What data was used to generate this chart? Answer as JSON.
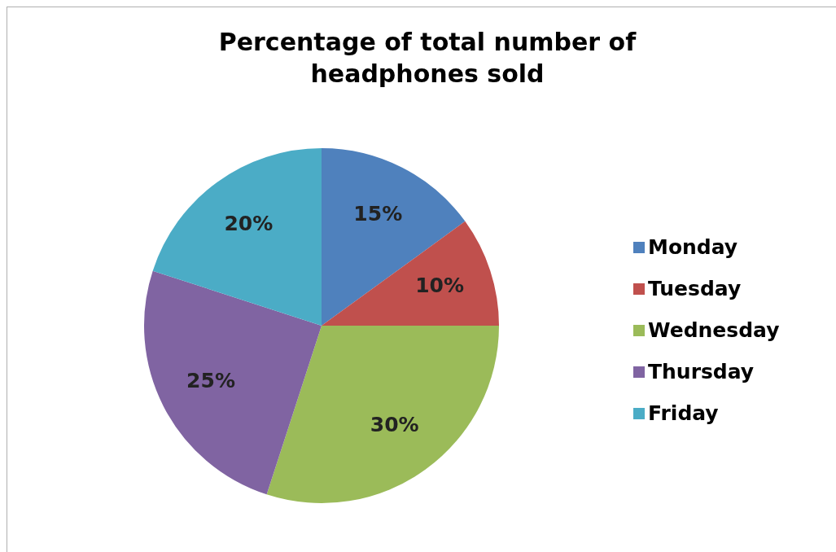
{
  "chart_data": {
    "type": "pie",
    "title": "Percentage of total number of headphones sold",
    "categories": [
      "Monday",
      "Tuesday",
      "Wednesday",
      "Thursday",
      "Friday"
    ],
    "values": [
      15,
      10,
      30,
      25,
      20
    ],
    "colors": [
      "#4f81bd",
      "#c0504d",
      "#9bbb59",
      "#8064a2",
      "#4bacc6"
    ],
    "value_labels": [
      "15%",
      "10%",
      "30%",
      "25%",
      "20%"
    ],
    "legend": "right"
  }
}
